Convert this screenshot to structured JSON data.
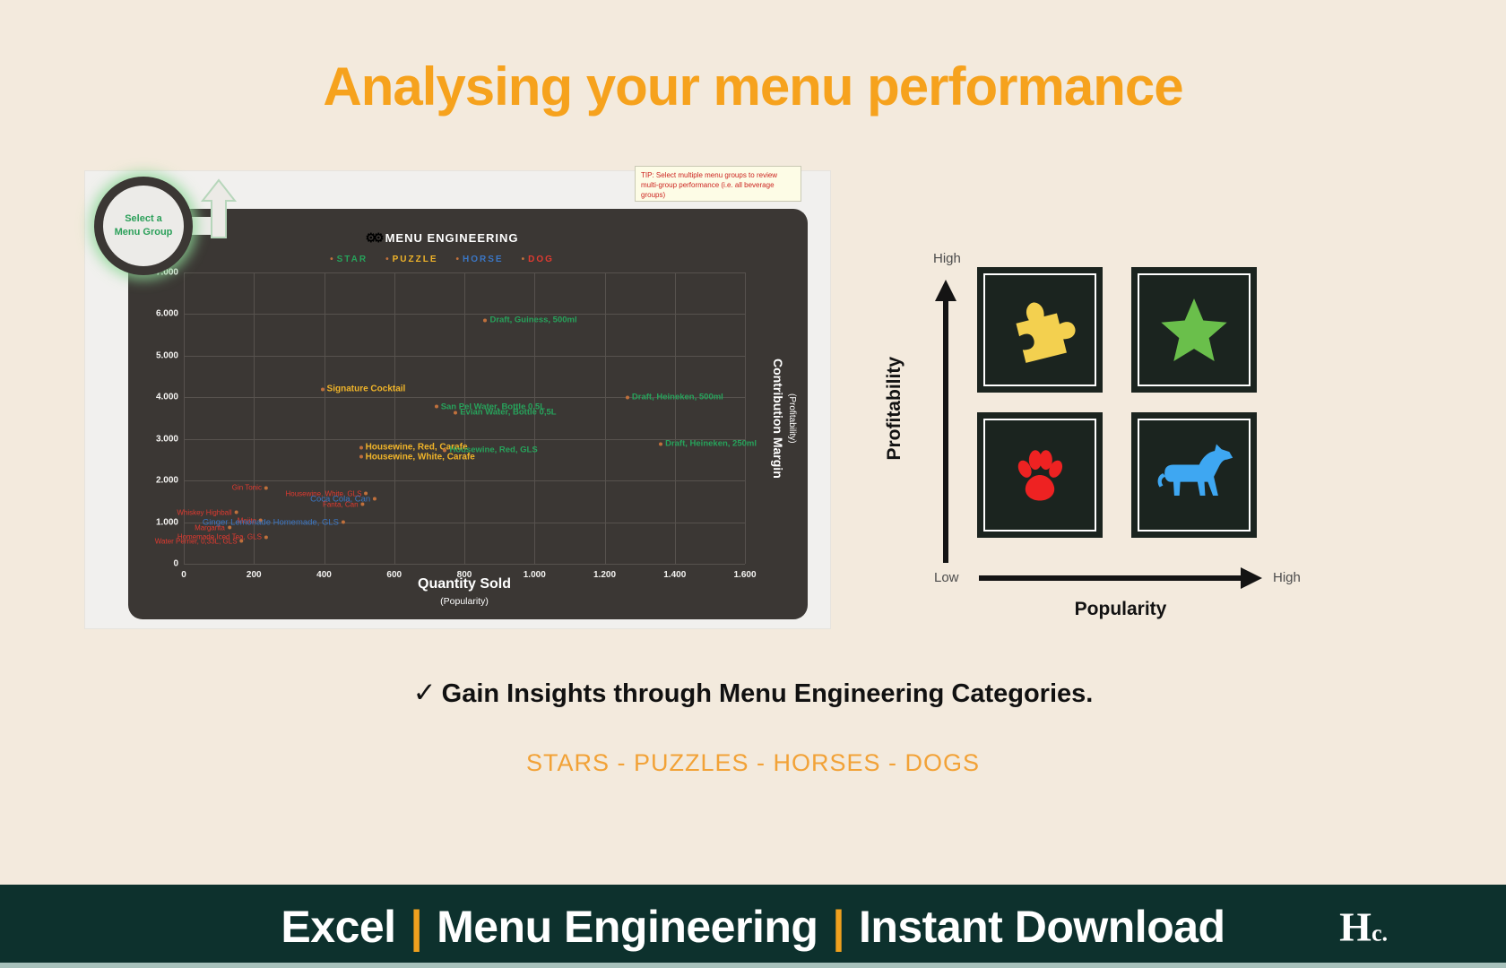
{
  "title": "Analysing your menu performance",
  "excel_panel": {
    "callout": {
      "line1": "Select a",
      "line2": "Menu Group"
    },
    "tip_text": "TIP: Select multiple menu groups to review multi-group performance (i.e. all beverage groups)"
  },
  "chart_data": {
    "type": "scatter",
    "title": "MENU ENGINEERING",
    "legend_position": "top",
    "grid": true,
    "legend": [
      {
        "label": "STAR",
        "color": "#27a25b"
      },
      {
        "label": "PUZZLE",
        "color": "#f0b429"
      },
      {
        "label": "HORSE",
        "color": "#3b76c4"
      },
      {
        "label": "DOG",
        "color": "#e03a30"
      }
    ],
    "marker_color": "#c0703c",
    "xlabel": "Quantity Sold",
    "xlabel_sub": "(Popularity)",
    "ylabel": "Contribution Margin",
    "ylabel_sub": "(Profitability)",
    "xlim": [
      0,
      1600
    ],
    "ylim": [
      0,
      7000
    ],
    "x_ticks": [
      "0",
      "200",
      "400",
      "600",
      "800",
      "1.000",
      "1.200",
      "1.400",
      "1.600"
    ],
    "y_ticks": [
      "7.000",
      "6.000",
      "5.000",
      "4.000",
      "3.000",
      "2.000",
      "1.000",
      "0"
    ],
    "points": [
      {
        "label": "Draft, Guiness, 500ml",
        "x": 860,
        "y": 5850,
        "category": "STAR",
        "side": "right"
      },
      {
        "label": "Signature Cocktail",
        "x": 395,
        "y": 4200,
        "category": "PUZZLE",
        "side": "right"
      },
      {
        "label": "Draft, Heineken, 500ml",
        "x": 1265,
        "y": 4000,
        "category": "STAR",
        "side": "right"
      },
      {
        "label": "San Pel Water, Bottle 0,5L",
        "x": 720,
        "y": 3780,
        "category": "STAR",
        "side": "right"
      },
      {
        "label": "Evian Water, Bottle 0,5L",
        "x": 775,
        "y": 3640,
        "category": "STAR",
        "side": "right"
      },
      {
        "label": "Draft, Heineken, 250ml",
        "x": 1360,
        "y": 2880,
        "category": "STAR",
        "side": "right"
      },
      {
        "label": "Housewine, Red, Carafe",
        "x": 505,
        "y": 2790,
        "category": "PUZZLE",
        "side": "right"
      },
      {
        "label": "Housewine, Red, GLS",
        "x": 745,
        "y": 2730,
        "category": "STAR",
        "side": "right"
      },
      {
        "label": "Housewine, White, Carafe",
        "x": 505,
        "y": 2570,
        "category": "PUZZLE",
        "side": "right"
      },
      {
        "label": "Gin Tonic",
        "x": 235,
        "y": 1830,
        "category": "DOG",
        "side": "left"
      },
      {
        "label": "Housewine, White, GLS",
        "x": 520,
        "y": 1690,
        "category": "DOG",
        "side": "left"
      },
      {
        "label": "Coca Cola, Can",
        "x": 545,
        "y": 1560,
        "category": "HORSE",
        "side": "left"
      },
      {
        "label": "Fanta, Can",
        "x": 510,
        "y": 1430,
        "category": "DOG",
        "side": "left"
      },
      {
        "label": "Whiskey Highball",
        "x": 150,
        "y": 1230,
        "category": "DOG",
        "side": "left"
      },
      {
        "label": "Mojito",
        "x": 220,
        "y": 1040,
        "category": "DOG",
        "side": "left"
      },
      {
        "label": "Ginger Lemonade Homemade, GLS",
        "x": 455,
        "y": 1000,
        "category": "HORSE",
        "side": "left"
      },
      {
        "label": "Margarita",
        "x": 130,
        "y": 870,
        "category": "DOG",
        "side": "left"
      },
      {
        "label": "Homemade Iced Tea, GLS",
        "x": 235,
        "y": 640,
        "category": "DOG",
        "side": "left"
      },
      {
        "label": "Water Perrier, 0,33L, GLS",
        "x": 165,
        "y": 540,
        "category": "DOG",
        "side": "left"
      }
    ]
  },
  "quadrant": {
    "y_axis_label": "Profitability",
    "x_axis_label": "Popularity",
    "y_high": "High",
    "y_low": "Low",
    "x_high": "High",
    "cells": [
      {
        "name": "puzzle",
        "color": "#f3d04f"
      },
      {
        "name": "star",
        "color": "#6abf4b"
      },
      {
        "name": "paw",
        "color": "#ee2222"
      },
      {
        "name": "horse",
        "color": "#3ea7f2"
      }
    ]
  },
  "insight": {
    "check": "✓",
    "text": "Gain Insights through Menu Engineering Categories."
  },
  "categories_line": "STARS - PUZZLES - HORSES - DOGS",
  "footer": {
    "part1": "Excel",
    "sep1": "|",
    "part2": "Menu Engineering",
    "sep2": "|",
    "part3": "Instant Download",
    "logo_h": "H",
    "logo_c": "c."
  }
}
